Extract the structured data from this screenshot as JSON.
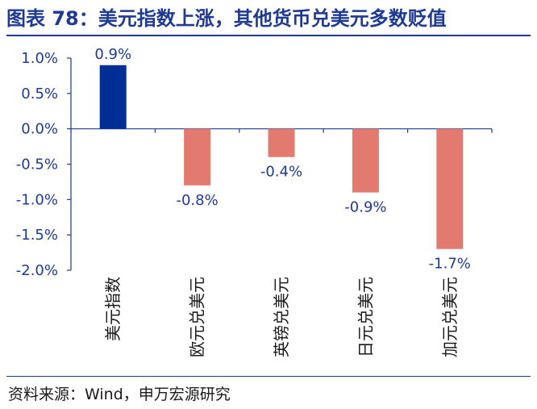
{
  "title": "图表 78：美元指数上涨，其他货币兑美元多数贬值",
  "source": "资料来源：Wind，申万宏源研究",
  "colors": {
    "title": "#1f3a93",
    "positive": "#002e94",
    "negative": "#e27a6f",
    "axis": "#1f3a93",
    "text": "#1f3a93"
  },
  "chart_data": {
    "type": "bar",
    "title": "美元指数上涨，其他货币兑美元多数贬值",
    "categories": [
      "美元指数",
      "欧元兑美元",
      "英镑兑美元",
      "日元兑美元",
      "加元兑美元"
    ],
    "values": [
      0.9,
      -0.8,
      -0.4,
      -0.9,
      -1.7
    ],
    "data_labels": [
      "0.9%",
      "-0.8%",
      "-0.4%",
      "-0.9%",
      "-1.7%"
    ],
    "y_ticks": [
      "1.0%",
      "0.5%",
      "0.0%",
      "-0.5%",
      "-1.0%",
      "-1.5%",
      "-2.0%"
    ],
    "y_tick_values": [
      1.0,
      0.5,
      0.0,
      -0.5,
      -1.0,
      -1.5,
      -2.0
    ],
    "ylim": [
      -2.0,
      1.0
    ],
    "xlabel": "",
    "ylabel": "",
    "grid": false,
    "legend": "none"
  }
}
